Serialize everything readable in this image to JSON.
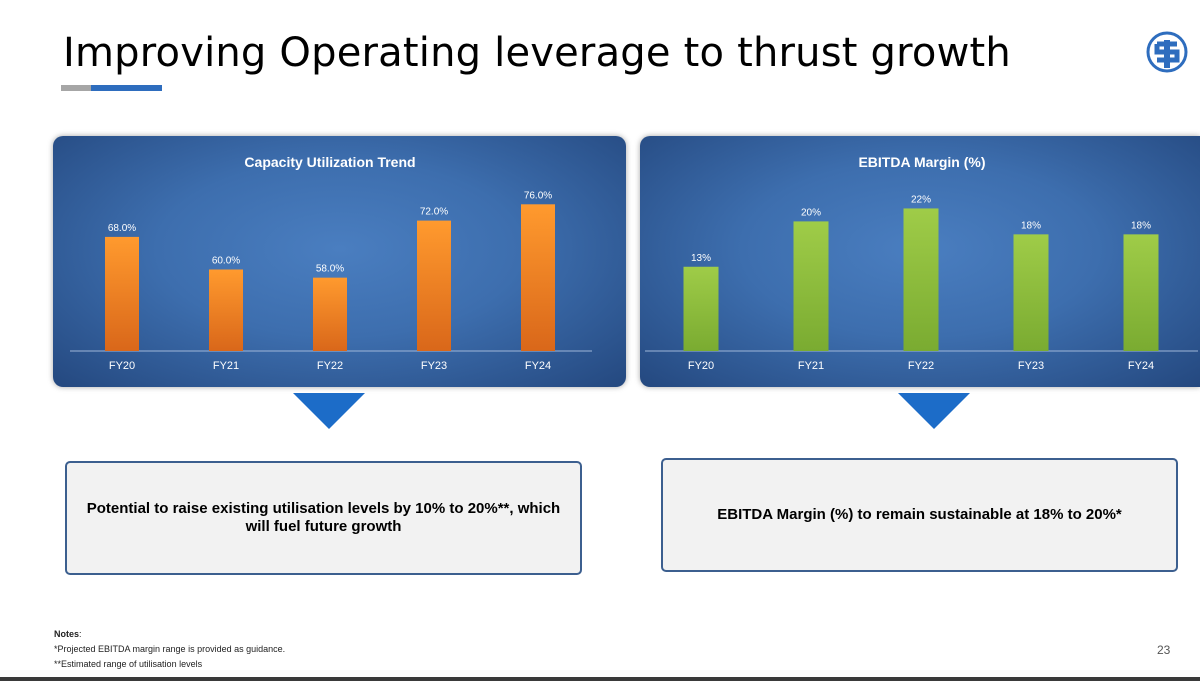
{
  "page": {
    "title": "Improving Operating leverage to thrust growth",
    "page_number": "23",
    "colors": {
      "accent_blue": "#2e6dbe",
      "accent_gray": "#a6a6a6",
      "bar_orange": "#f0851f",
      "bar_green": "#8dbb3b",
      "arrow_blue": "#1c6cc8"
    }
  },
  "logo": {
    "icon": "company-logo-icon"
  },
  "chart_data": [
    {
      "type": "bar",
      "title": "Capacity Utilization Trend",
      "categories": [
        "FY20",
        "FY21",
        "FY22",
        "FY23",
        "FY24"
      ],
      "values": [
        68.0,
        60.0,
        58.0,
        72.0,
        76.0
      ],
      "data_labels": [
        "68.0%",
        "60.0%",
        "58.0%",
        "72.0%",
        "76.0%"
      ],
      "ylim": [
        40,
        80
      ],
      "grid": false,
      "color": "#f0851f"
    },
    {
      "type": "bar",
      "title": "EBITDA Margin (%)",
      "categories": [
        "FY20",
        "FY21",
        "FY22",
        "FY23",
        "FY24"
      ],
      "values": [
        13,
        20,
        22,
        18,
        18
      ],
      "data_labels": [
        "13%",
        "20%",
        "22%",
        "18%",
        "18%"
      ],
      "ylim": [
        0,
        25
      ],
      "grid": false,
      "color": "#8dbb3b"
    }
  ],
  "boxes": {
    "left": "Potential to raise existing utilisation levels by 10% to 20%**, which will fuel future growth",
    "right": "EBITDA Margin (%) to remain sustainable at 18% to 20%*"
  },
  "notes": {
    "heading": "Notes",
    "line1": "*Projected EBITDA margin range is provided as guidance.",
    "line2": "**Estimated range of utilisation levels"
  }
}
